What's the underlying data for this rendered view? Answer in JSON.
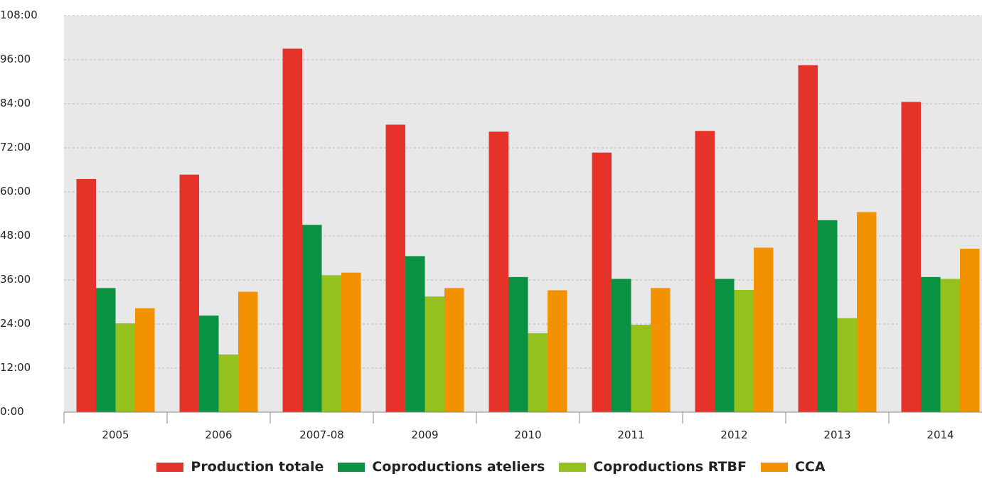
{
  "chart_data": {
    "type": "bar",
    "categories": [
      "2005",
      "2006",
      "2007-08",
      "2009",
      "2010",
      "2011",
      "2012",
      "2013",
      "2014"
    ],
    "y_ticks": [
      "0:00",
      "12:00",
      "24:00",
      "36:00",
      "48:00",
      "60:00",
      "72:00",
      "84:00",
      "96:00",
      "108:00"
    ],
    "ylim": [
      0,
      108
    ],
    "grid": true,
    "legend_position": "bottom",
    "series": [
      {
        "name": "Production totale",
        "color": "#e5332a",
        "values": [
          63.5,
          64.7,
          99.0,
          78.3,
          76.4,
          70.7,
          76.6,
          94.5,
          84.5
        ]
      },
      {
        "name": "Coproductions ateliers",
        "color": "#0a9141",
        "values": [
          33.8,
          26.3,
          51.0,
          42.5,
          36.8,
          36.3,
          36.3,
          52.3,
          36.8
        ]
      },
      {
        "name": "Coproductions RTBF",
        "color": "#95c11f",
        "values": [
          24.2,
          15.7,
          37.3,
          31.5,
          21.5,
          23.8,
          33.3,
          25.6,
          36.3
        ]
      },
      {
        "name": "CCA",
        "color": "#f39200",
        "values": [
          28.3,
          32.8,
          38.0,
          33.8,
          33.2,
          33.8,
          44.8,
          54.5,
          44.5
        ]
      }
    ]
  }
}
